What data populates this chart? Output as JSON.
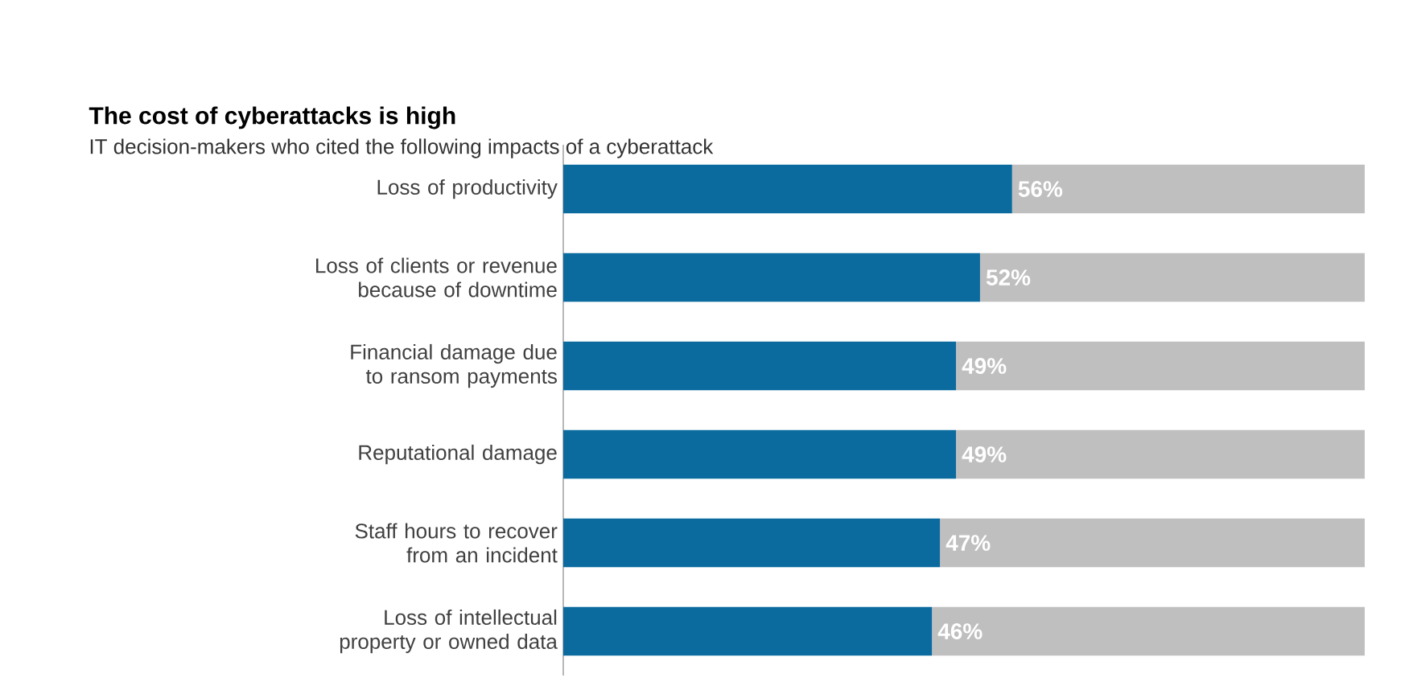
{
  "chart_data": {
    "type": "bar",
    "orientation": "horizontal",
    "stacked": true,
    "tick_labels": "y",
    "xlim": [
      0,
      100
    ],
    "title": "The cost of cyberattacks is high",
    "subtitle": "IT decision-makers who cited the following impacts of a cyberattack",
    "categories": [
      "Loss of productivity",
      "Loss of clients or revenue because of downtime",
      "Financial damage due to ransom payments",
      "Reputational damage",
      "Staff hours to recover from an incident",
      "Loss of intellectual property or owned data"
    ],
    "series": [
      {
        "color": "#0b6b9f",
        "values": [
          56,
          52,
          49,
          49,
          47,
          46
        ],
        "value_labels": [
          "56%",
          "52%",
          "49%",
          "49%",
          "47%",
          "46%"
        ]
      },
      {
        "color": "#bfbfbf",
        "values": [
          44,
          48,
          51,
          51,
          53,
          54
        ]
      }
    ]
  }
}
